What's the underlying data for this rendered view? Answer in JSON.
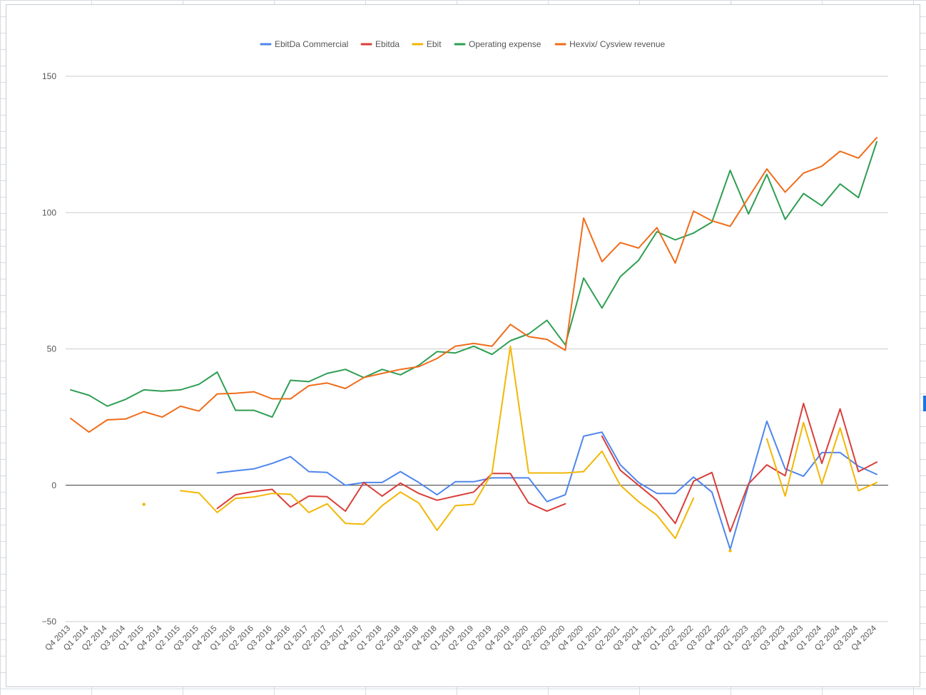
{
  "chart_data": {
    "type": "line",
    "title": "",
    "xlabel": "",
    "ylabel": "",
    "ylim": [
      -50,
      150
    ],
    "yticks": [
      -50,
      0,
      50,
      100,
      150
    ],
    "grid": true,
    "legend_position": "top",
    "categories": [
      "Q4 2013",
      "Q1 2014",
      "Q2 2014",
      "Q3 2014",
      "Q1 2015",
      "Q4 2014",
      "Q2 1015",
      "Q3 2015",
      "Q4 2015",
      "Q1 2016",
      "Q2 2016",
      "Q3 2016",
      "Q4 2016",
      "Q1 2017",
      "Q2 2017",
      "Q3 2017",
      "Q4 2017",
      "Q1 2018",
      "Q2 2018",
      "Q3 2018",
      "Q4 2018",
      "Q1 2019",
      "Q2 2019",
      "Q3 2019",
      "Q4 2019",
      "Q1 2020",
      "Q2 2020",
      "Q3 2020",
      "Q4 2020",
      "Q1 2021",
      "Q2 2021",
      "Q3 2021",
      "Q4 2021",
      "Q1 2022",
      "Q2 2022",
      "Q3 2022",
      "Q4 2022",
      "Q1 2023",
      "Q2 2023",
      "Q3 2023",
      "Q4 2023",
      "Q1 2024",
      "Q2 2024",
      "Q3 2024",
      "Q4 2024"
    ],
    "series": [
      {
        "name": "EbitDa Commercial",
        "color": "#4f86ec",
        "values": [
          null,
          null,
          null,
          null,
          null,
          null,
          null,
          null,
          4.5,
          5.3,
          6,
          8,
          10.5,
          5,
          4.7,
          0,
          1,
          1,
          5,
          1,
          -3.5,
          1.3,
          1.3,
          2.7,
          2.7,
          2.7,
          -6,
          -3.5,
          18,
          19.5,
          7.5,
          1,
          -3,
          -3,
          3,
          -2.5,
          -23.5,
          0,
          23.5,
          6,
          3.3,
          12,
          12,
          7,
          4
        ]
      },
      {
        "name": "Ebitda",
        "color": "#d93f3a",
        "values": [
          null,
          null,
          null,
          null,
          null,
          null,
          null,
          null,
          -8.5,
          -3.5,
          -2.3,
          -1.5,
          -8,
          -4,
          -4.2,
          -9.5,
          1,
          -4,
          0.8,
          -3,
          -5.5,
          -4,
          -2.5,
          4.3,
          4.3,
          -6.5,
          -9.5,
          -6.8,
          null,
          18,
          5.5,
          0,
          -5.5,
          -14,
          1.5,
          4.7,
          -17,
          0.5,
          7.5,
          3.5,
          30,
          8,
          28,
          5,
          8.5
        ]
      },
      {
        "name": "Ebit",
        "color": "#f2b705",
        "values": [
          null,
          null,
          null,
          null,
          -7,
          null,
          -2,
          -2.8,
          -10,
          -4.8,
          -4.3,
          -3,
          -3.3,
          -10,
          -6.8,
          -14,
          -14.3,
          -7.5,
          -2.5,
          -6.5,
          -16.5,
          -7.5,
          -7,
          4.5,
          51,
          4.5,
          4.5,
          4.5,
          5,
          12.5,
          0,
          -6,
          -11,
          -19.5,
          -4.7,
          null,
          -24,
          null,
          17,
          -4,
          23,
          0.5,
          21,
          -2,
          1
        ]
      },
      {
        "name": "Operating expense",
        "color": "#2e9e52",
        "values": [
          35,
          33,
          29,
          31.5,
          35,
          34.5,
          35,
          37,
          41.5,
          27.5,
          27.5,
          25,
          38.5,
          38,
          41,
          42.5,
          39.5,
          42.5,
          40.5,
          44,
          49,
          48.5,
          51,
          48,
          53,
          55.5,
          60.5,
          51.5,
          76,
          65,
          76.5,
          82.5,
          93,
          90,
          92.5,
          96.5,
          115.5,
          99.5,
          114,
          97.5,
          107,
          102.5,
          110.5,
          105.5,
          126
        ]
      },
      {
        "name": "Hexvix/ Cysview revenue",
        "color": "#f06c1a",
        "values": [
          24.5,
          19.5,
          24,
          24.3,
          27,
          25,
          29,
          27.2,
          33.5,
          33.7,
          34.3,
          31.7,
          31.7,
          36.5,
          37.5,
          35.5,
          39.5,
          41,
          42.5,
          43.5,
          46.5,
          51,
          52,
          51,
          59,
          54.5,
          53.5,
          49.5,
          98,
          82,
          89,
          87,
          94.5,
          81.5,
          100.5,
          97,
          95,
          105.5,
          116,
          107.5,
          114.5,
          117,
          122.5,
          120,
          127.5
        ]
      }
    ]
  }
}
